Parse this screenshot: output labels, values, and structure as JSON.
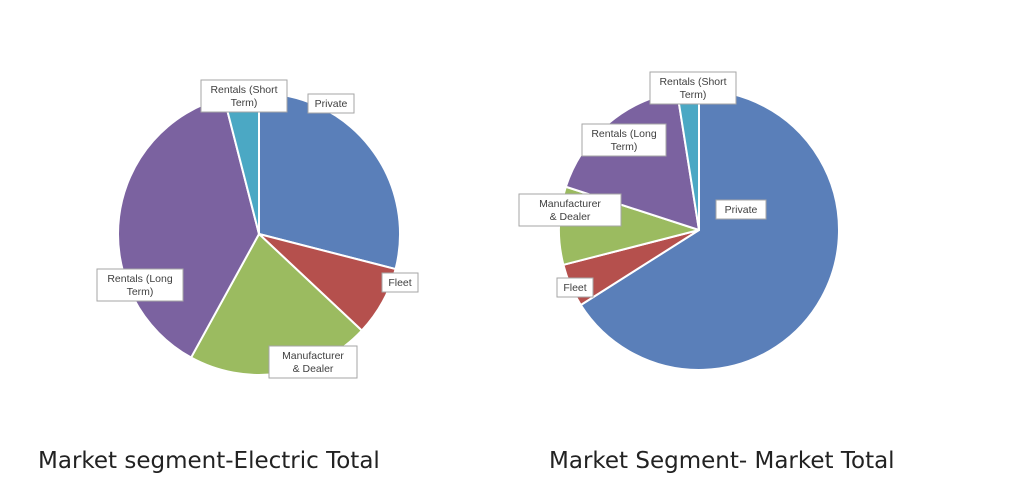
{
  "colors": {
    "Private": "#5a7fb9",
    "Fleet": "#b5504d",
    "Manufacturer & Dealer": "#9bbb60",
    "Rentals (Long Term)": "#7b62a0",
    "Rentals (Short Term)": "#4ba8c4"
  },
  "chart_data": [
    {
      "type": "pie",
      "title": "Market segment-Electric Total",
      "categories": [
        "Private",
        "Fleet",
        "Manufacturer & Dealer",
        "Rentals (Long Term)",
        "Rentals (Short Term)"
      ],
      "values": [
        29,
        8,
        21,
        38,
        4
      ],
      "legend": "none",
      "data_labels": [
        "Private",
        "Fleet",
        "Manufacturer & Dealer",
        "Rentals (Long Term)",
        "Rentals (Short Term)"
      ]
    },
    {
      "type": "pie",
      "title": "Market Segment- Market Total",
      "categories": [
        "Private",
        "Fleet",
        "Manufacturer & Dealer",
        "Rentals (Long Term)",
        "Rentals (Short Term)"
      ],
      "values": [
        66,
        5,
        9,
        17.5,
        2.5
      ],
      "legend": "none",
      "data_labels": [
        "Private",
        "Fleet",
        "Manufacturer & Dealer",
        "Rentals (Long Term)",
        "Rentals (Short Term)"
      ]
    }
  ]
}
